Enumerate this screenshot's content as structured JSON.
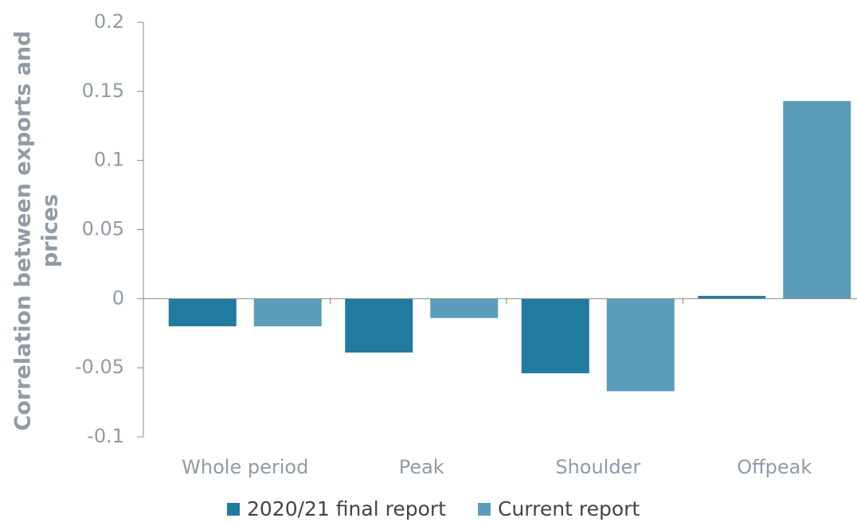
{
  "chart_data": {
    "type": "bar",
    "y_label": [
      "Correlation between exports and",
      "prices"
    ],
    "categories": [
      "Whole period",
      "Peak",
      "Shoulder",
      "Offpeak"
    ],
    "series": [
      {
        "name": "2020/21 final report",
        "color": "#217b9e",
        "values": [
          -0.02,
          -0.039,
          -0.054,
          0.002
        ]
      },
      {
        "name": "Current report",
        "color": "#5b9cba",
        "values": [
          -0.02,
          -0.014,
          -0.067,
          0.143
        ]
      }
    ],
    "ylim": [
      -0.1,
      0.2
    ],
    "yticks": [
      -0.1,
      -0.05,
      0,
      0.05,
      0.1,
      0.15,
      0.2
    ],
    "grid": false,
    "legend": "bottom"
  }
}
